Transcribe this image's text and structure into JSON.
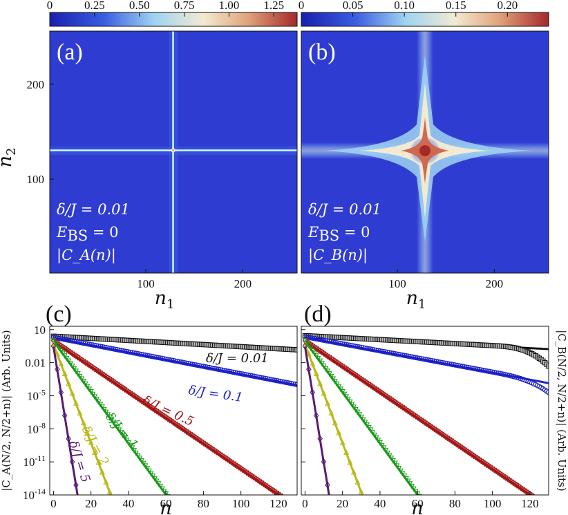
{
  "chart_data": [
    {
      "panel": "(a)",
      "type": "heatmap",
      "colorbar_ticks": [
        "0",
        "0.25",
        "0.50",
        "0.75",
        "1.00",
        "1.25"
      ],
      "colorbar_range": [
        0,
        1.38
      ],
      "colormap": [
        "#1a1fb0",
        "#3a5ee0",
        "#9fd3f2",
        "#f2ead2",
        "#e0a47c",
        "#a5282a"
      ],
      "xlabel": "n_1",
      "ylabel": "n_2",
      "x_ticks": [
        "100",
        "200"
      ],
      "y_ticks": [
        "100",
        "200"
      ],
      "xlim": [
        1,
        256
      ],
      "ylim": [
        1,
        256
      ],
      "center": [
        128,
        128
      ],
      "peak_value": 1.38,
      "annotation": {
        "line1": "δ/J = 0.01",
        "line2_main": "E",
        "line2_sub": "BS",
        "line2_rest": " = 0",
        "line3": "|C_A(n)|"
      }
    },
    {
      "panel": "(b)",
      "type": "heatmap",
      "colorbar_ticks": [
        "0",
        "0.05",
        "0.10",
        "0.15",
        "0.20"
      ],
      "colorbar_range": [
        0,
        0.24
      ],
      "colormap": [
        "#1a1fb0",
        "#3a5ee0",
        "#9fd3f2",
        "#f2ead2",
        "#e0a47c",
        "#a5282a"
      ],
      "xlabel": "n_1",
      "x_ticks": [
        "100",
        "200"
      ],
      "xlim": [
        1,
        256
      ],
      "ylim": [
        1,
        256
      ],
      "center": [
        128,
        128
      ],
      "peak_value": 0.24,
      "annotation": {
        "line1": "δ/J = 0.01",
        "line2_main": "E",
        "line2_sub": "BS",
        "line2_rest": " = 0",
        "line3": "|C_B(n)|"
      }
    },
    {
      "panel": "(c)",
      "type": "line",
      "y_scale": "log",
      "xlabel": "n",
      "ylabel": "|C_A(N/2, N/2+n)| (Arb. Units)",
      "xlim": [
        -2,
        130
      ],
      "ylim_log10": [
        -14,
        1.3
      ],
      "x_ticks": [
        "0",
        "20",
        "40",
        "60",
        "80",
        "100",
        "120"
      ],
      "y_ticks": [
        "10",
        "0.01",
        "10^-5",
        "10^-8",
        "10^-11",
        "10^-14"
      ],
      "series": [
        {
          "name": "δ/J = 0.01",
          "color": "#111111",
          "marker": "square",
          "log10_start": 0.4,
          "log10_slope": -0.0095
        },
        {
          "name": "δ/J = 0.1",
          "color": "#1a1fc4",
          "marker": "circle",
          "log10_start": 0.3,
          "log10_slope": -0.033
        },
        {
          "name": "δ/J = 0.5",
          "color": "#a31313",
          "marker": "diamond",
          "log10_start": 0.0,
          "log10_slope": -0.116
        },
        {
          "name": "δ/J = 1",
          "color": "#1a9a1a",
          "marker": "triangle-down",
          "log10_start": 0.0,
          "log10_slope": -0.232
        },
        {
          "name": "δ/J = 2",
          "color": "#b8b81a",
          "marker": "triangle-up",
          "log10_start": -0.3,
          "log10_slope": -0.447
        },
        {
          "name": "δ/J = 5",
          "color": "#5a1a73",
          "marker": "diamond-open",
          "log10_start": -0.5,
          "log10_slope": -1.05
        }
      ]
    },
    {
      "panel": "(d)",
      "type": "line",
      "y_scale": "log",
      "xlabel": "n",
      "ylabel": "|C_B(N/2, N/2+n)| (Arb. Units)",
      "xlim": [
        -2,
        130
      ],
      "ylim_log10": [
        -14,
        1.3
      ],
      "x_ticks": [
        "0",
        "20",
        "40",
        "60",
        "80",
        "100",
        "120"
      ],
      "series": [
        {
          "color": "#111111",
          "marker": "square",
          "log10_start": 0.45,
          "log10_slope": -0.009
        },
        {
          "color": "#1a1fc4",
          "marker": "circle",
          "log10_start": 0.35,
          "log10_slope": -0.032
        },
        {
          "color": "#a31313",
          "marker": "diamond",
          "log10_start": 0.0,
          "log10_slope": -0.116
        },
        {
          "color": "#1a9a1a",
          "marker": "triangle-down",
          "log10_start": 0.0,
          "log10_slope": -0.232
        },
        {
          "color": "#b8b81a",
          "marker": "triangle-up",
          "log10_start": -0.3,
          "log10_slope": -0.447
        },
        {
          "color": "#5a1a73",
          "marker": "diamond-open",
          "log10_start": -0.5,
          "log10_slope": -1.05
        }
      ]
    }
  ]
}
